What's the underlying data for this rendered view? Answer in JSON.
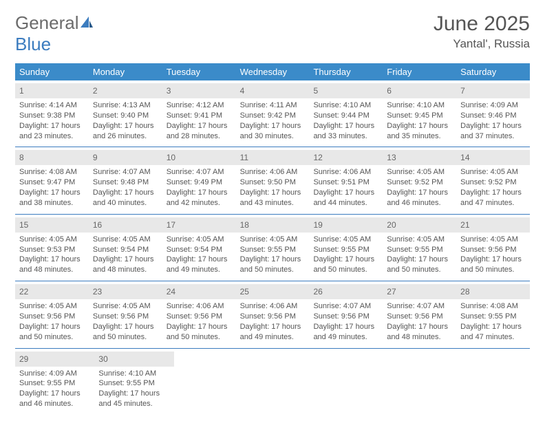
{
  "logo": {
    "general": "General",
    "blue": "Blue"
  },
  "title": "June 2025",
  "location": "Yantal', Russia",
  "styling": {
    "header_bg": "#3b8bc9",
    "cell_border": "#3b7cbf",
    "daynum_bg": "#e8e8e8",
    "text_color": "#555555",
    "logo_gray": "#6b6b6b",
    "logo_blue": "#3b7cbf",
    "day_fontsize": 12,
    "line_fontsize": 11,
    "title_fontsize": 30,
    "location_fontsize": 17
  },
  "day_headers": [
    "Sunday",
    "Monday",
    "Tuesday",
    "Wednesday",
    "Thursday",
    "Friday",
    "Saturday"
  ],
  "weeks": [
    [
      {
        "n": "1",
        "sr": "Sunrise: 4:14 AM",
        "ss": "Sunset: 9:38 PM",
        "d1": "Daylight: 17 hours",
        "d2": "and 23 minutes."
      },
      {
        "n": "2",
        "sr": "Sunrise: 4:13 AM",
        "ss": "Sunset: 9:40 PM",
        "d1": "Daylight: 17 hours",
        "d2": "and 26 minutes."
      },
      {
        "n": "3",
        "sr": "Sunrise: 4:12 AM",
        "ss": "Sunset: 9:41 PM",
        "d1": "Daylight: 17 hours",
        "d2": "and 28 minutes."
      },
      {
        "n": "4",
        "sr": "Sunrise: 4:11 AM",
        "ss": "Sunset: 9:42 PM",
        "d1": "Daylight: 17 hours",
        "d2": "and 30 minutes."
      },
      {
        "n": "5",
        "sr": "Sunrise: 4:10 AM",
        "ss": "Sunset: 9:44 PM",
        "d1": "Daylight: 17 hours",
        "d2": "and 33 minutes."
      },
      {
        "n": "6",
        "sr": "Sunrise: 4:10 AM",
        "ss": "Sunset: 9:45 PM",
        "d1": "Daylight: 17 hours",
        "d2": "and 35 minutes."
      },
      {
        "n": "7",
        "sr": "Sunrise: 4:09 AM",
        "ss": "Sunset: 9:46 PM",
        "d1": "Daylight: 17 hours",
        "d2": "and 37 minutes."
      }
    ],
    [
      {
        "n": "8",
        "sr": "Sunrise: 4:08 AM",
        "ss": "Sunset: 9:47 PM",
        "d1": "Daylight: 17 hours",
        "d2": "and 38 minutes."
      },
      {
        "n": "9",
        "sr": "Sunrise: 4:07 AM",
        "ss": "Sunset: 9:48 PM",
        "d1": "Daylight: 17 hours",
        "d2": "and 40 minutes."
      },
      {
        "n": "10",
        "sr": "Sunrise: 4:07 AM",
        "ss": "Sunset: 9:49 PM",
        "d1": "Daylight: 17 hours",
        "d2": "and 42 minutes."
      },
      {
        "n": "11",
        "sr": "Sunrise: 4:06 AM",
        "ss": "Sunset: 9:50 PM",
        "d1": "Daylight: 17 hours",
        "d2": "and 43 minutes."
      },
      {
        "n": "12",
        "sr": "Sunrise: 4:06 AM",
        "ss": "Sunset: 9:51 PM",
        "d1": "Daylight: 17 hours",
        "d2": "and 44 minutes."
      },
      {
        "n": "13",
        "sr": "Sunrise: 4:05 AM",
        "ss": "Sunset: 9:52 PM",
        "d1": "Daylight: 17 hours",
        "d2": "and 46 minutes."
      },
      {
        "n": "14",
        "sr": "Sunrise: 4:05 AM",
        "ss": "Sunset: 9:52 PM",
        "d1": "Daylight: 17 hours",
        "d2": "and 47 minutes."
      }
    ],
    [
      {
        "n": "15",
        "sr": "Sunrise: 4:05 AM",
        "ss": "Sunset: 9:53 PM",
        "d1": "Daylight: 17 hours",
        "d2": "and 48 minutes."
      },
      {
        "n": "16",
        "sr": "Sunrise: 4:05 AM",
        "ss": "Sunset: 9:54 PM",
        "d1": "Daylight: 17 hours",
        "d2": "and 48 minutes."
      },
      {
        "n": "17",
        "sr": "Sunrise: 4:05 AM",
        "ss": "Sunset: 9:54 PM",
        "d1": "Daylight: 17 hours",
        "d2": "and 49 minutes."
      },
      {
        "n": "18",
        "sr": "Sunrise: 4:05 AM",
        "ss": "Sunset: 9:55 PM",
        "d1": "Daylight: 17 hours",
        "d2": "and 50 minutes."
      },
      {
        "n": "19",
        "sr": "Sunrise: 4:05 AM",
        "ss": "Sunset: 9:55 PM",
        "d1": "Daylight: 17 hours",
        "d2": "and 50 minutes."
      },
      {
        "n": "20",
        "sr": "Sunrise: 4:05 AM",
        "ss": "Sunset: 9:55 PM",
        "d1": "Daylight: 17 hours",
        "d2": "and 50 minutes."
      },
      {
        "n": "21",
        "sr": "Sunrise: 4:05 AM",
        "ss": "Sunset: 9:56 PM",
        "d1": "Daylight: 17 hours",
        "d2": "and 50 minutes."
      }
    ],
    [
      {
        "n": "22",
        "sr": "Sunrise: 4:05 AM",
        "ss": "Sunset: 9:56 PM",
        "d1": "Daylight: 17 hours",
        "d2": "and 50 minutes."
      },
      {
        "n": "23",
        "sr": "Sunrise: 4:05 AM",
        "ss": "Sunset: 9:56 PM",
        "d1": "Daylight: 17 hours",
        "d2": "and 50 minutes."
      },
      {
        "n": "24",
        "sr": "Sunrise: 4:06 AM",
        "ss": "Sunset: 9:56 PM",
        "d1": "Daylight: 17 hours",
        "d2": "and 50 minutes."
      },
      {
        "n": "25",
        "sr": "Sunrise: 4:06 AM",
        "ss": "Sunset: 9:56 PM",
        "d1": "Daylight: 17 hours",
        "d2": "and 49 minutes."
      },
      {
        "n": "26",
        "sr": "Sunrise: 4:07 AM",
        "ss": "Sunset: 9:56 PM",
        "d1": "Daylight: 17 hours",
        "d2": "and 49 minutes."
      },
      {
        "n": "27",
        "sr": "Sunrise: 4:07 AM",
        "ss": "Sunset: 9:56 PM",
        "d1": "Daylight: 17 hours",
        "d2": "and 48 minutes."
      },
      {
        "n": "28",
        "sr": "Sunrise: 4:08 AM",
        "ss": "Sunset: 9:55 PM",
        "d1": "Daylight: 17 hours",
        "d2": "and 47 minutes."
      }
    ],
    [
      {
        "n": "29",
        "sr": "Sunrise: 4:09 AM",
        "ss": "Sunset: 9:55 PM",
        "d1": "Daylight: 17 hours",
        "d2": "and 46 minutes."
      },
      {
        "n": "30",
        "sr": "Sunrise: 4:10 AM",
        "ss": "Sunset: 9:55 PM",
        "d1": "Daylight: 17 hours",
        "d2": "and 45 minutes."
      },
      null,
      null,
      null,
      null,
      null
    ]
  ]
}
